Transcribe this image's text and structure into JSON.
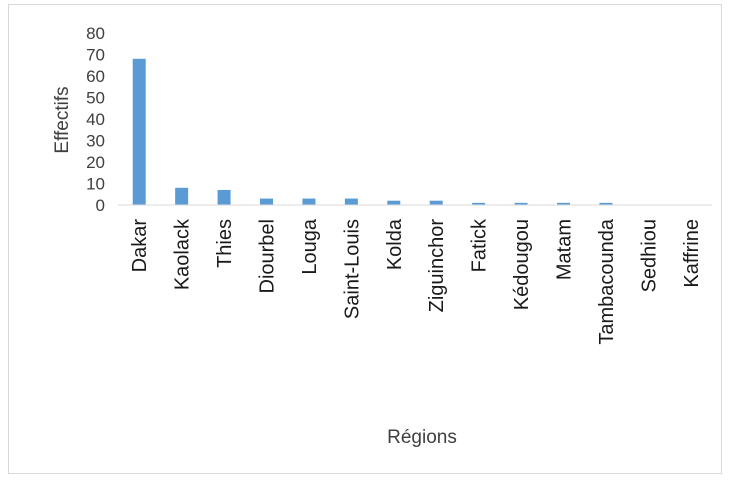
{
  "chart_data": {
    "type": "bar",
    "xlabel": "Régions",
    "ylabel": "Effectifs",
    "ylim": [
      0,
      80
    ],
    "yticks": [
      "0",
      "10",
      "20",
      "30",
      "40",
      "50",
      "60",
      "70",
      "80"
    ],
    "categories": [
      "Dakar",
      "Kaolack",
      "Thies",
      "Diourbel",
      "Louga",
      "Saint-Louis",
      "Kolda",
      "Ziguinchor",
      "Fatick",
      "Kédougou",
      "Matam",
      "Tambacounda",
      "Sedhiou",
      "Kaffrine"
    ],
    "values": [
      68,
      8,
      7,
      3,
      3,
      3,
      2,
      2,
      1,
      1,
      1,
      1,
      0,
      0
    ],
    "bar_color": "#5b9bd5",
    "grid": false,
    "legend": "none"
  }
}
